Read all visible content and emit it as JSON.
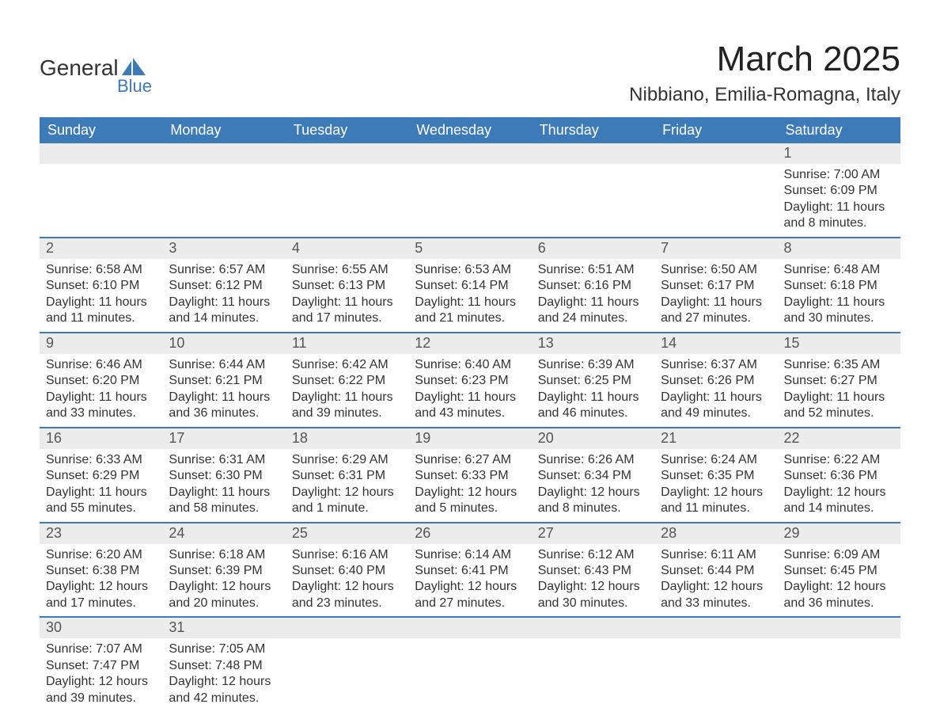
{
  "logo": {
    "text1": "General",
    "text2": "Blue",
    "brand_color": "#3d7ab8"
  },
  "title": "March 2025",
  "location": "Nibbiano, Emilia-Romagna, Italy",
  "colors": {
    "header_bg": "#3d7ab8",
    "header_text": "#ffffff",
    "daynum_bg": "#ececec",
    "text": "#333333",
    "border": "#3d7ab8",
    "background": "#ffffff"
  },
  "typography": {
    "title_fontsize": 44,
    "location_fontsize": 24,
    "dayheader_fontsize": 18,
    "daynum_fontsize": 18,
    "body_fontsize": 16,
    "font_family": "Arial"
  },
  "day_headers": [
    "Sunday",
    "Monday",
    "Tuesday",
    "Wednesday",
    "Thursday",
    "Friday",
    "Saturday"
  ],
  "weeks": [
    [
      {
        "n": "",
        "sunrise": "",
        "sunset": "",
        "dayl1": "",
        "dayl2": ""
      },
      {
        "n": "",
        "sunrise": "",
        "sunset": "",
        "dayl1": "",
        "dayl2": ""
      },
      {
        "n": "",
        "sunrise": "",
        "sunset": "",
        "dayl1": "",
        "dayl2": ""
      },
      {
        "n": "",
        "sunrise": "",
        "sunset": "",
        "dayl1": "",
        "dayl2": ""
      },
      {
        "n": "",
        "sunrise": "",
        "sunset": "",
        "dayl1": "",
        "dayl2": ""
      },
      {
        "n": "",
        "sunrise": "",
        "sunset": "",
        "dayl1": "",
        "dayl2": ""
      },
      {
        "n": "1",
        "sunrise": "Sunrise: 7:00 AM",
        "sunset": "Sunset: 6:09 PM",
        "dayl1": "Daylight: 11 hours",
        "dayl2": "and 8 minutes."
      }
    ],
    [
      {
        "n": "2",
        "sunrise": "Sunrise: 6:58 AM",
        "sunset": "Sunset: 6:10 PM",
        "dayl1": "Daylight: 11 hours",
        "dayl2": "and 11 minutes."
      },
      {
        "n": "3",
        "sunrise": "Sunrise: 6:57 AM",
        "sunset": "Sunset: 6:12 PM",
        "dayl1": "Daylight: 11 hours",
        "dayl2": "and 14 minutes."
      },
      {
        "n": "4",
        "sunrise": "Sunrise: 6:55 AM",
        "sunset": "Sunset: 6:13 PM",
        "dayl1": "Daylight: 11 hours",
        "dayl2": "and 17 minutes."
      },
      {
        "n": "5",
        "sunrise": "Sunrise: 6:53 AM",
        "sunset": "Sunset: 6:14 PM",
        "dayl1": "Daylight: 11 hours",
        "dayl2": "and 21 minutes."
      },
      {
        "n": "6",
        "sunrise": "Sunrise: 6:51 AM",
        "sunset": "Sunset: 6:16 PM",
        "dayl1": "Daylight: 11 hours",
        "dayl2": "and 24 minutes."
      },
      {
        "n": "7",
        "sunrise": "Sunrise: 6:50 AM",
        "sunset": "Sunset: 6:17 PM",
        "dayl1": "Daylight: 11 hours",
        "dayl2": "and 27 minutes."
      },
      {
        "n": "8",
        "sunrise": "Sunrise: 6:48 AM",
        "sunset": "Sunset: 6:18 PM",
        "dayl1": "Daylight: 11 hours",
        "dayl2": "and 30 minutes."
      }
    ],
    [
      {
        "n": "9",
        "sunrise": "Sunrise: 6:46 AM",
        "sunset": "Sunset: 6:20 PM",
        "dayl1": "Daylight: 11 hours",
        "dayl2": "and 33 minutes."
      },
      {
        "n": "10",
        "sunrise": "Sunrise: 6:44 AM",
        "sunset": "Sunset: 6:21 PM",
        "dayl1": "Daylight: 11 hours",
        "dayl2": "and 36 minutes."
      },
      {
        "n": "11",
        "sunrise": "Sunrise: 6:42 AM",
        "sunset": "Sunset: 6:22 PM",
        "dayl1": "Daylight: 11 hours",
        "dayl2": "and 39 minutes."
      },
      {
        "n": "12",
        "sunrise": "Sunrise: 6:40 AM",
        "sunset": "Sunset: 6:23 PM",
        "dayl1": "Daylight: 11 hours",
        "dayl2": "and 43 minutes."
      },
      {
        "n": "13",
        "sunrise": "Sunrise: 6:39 AM",
        "sunset": "Sunset: 6:25 PM",
        "dayl1": "Daylight: 11 hours",
        "dayl2": "and 46 minutes."
      },
      {
        "n": "14",
        "sunrise": "Sunrise: 6:37 AM",
        "sunset": "Sunset: 6:26 PM",
        "dayl1": "Daylight: 11 hours",
        "dayl2": "and 49 minutes."
      },
      {
        "n": "15",
        "sunrise": "Sunrise: 6:35 AM",
        "sunset": "Sunset: 6:27 PM",
        "dayl1": "Daylight: 11 hours",
        "dayl2": "and 52 minutes."
      }
    ],
    [
      {
        "n": "16",
        "sunrise": "Sunrise: 6:33 AM",
        "sunset": "Sunset: 6:29 PM",
        "dayl1": "Daylight: 11 hours",
        "dayl2": "and 55 minutes."
      },
      {
        "n": "17",
        "sunrise": "Sunrise: 6:31 AM",
        "sunset": "Sunset: 6:30 PM",
        "dayl1": "Daylight: 11 hours",
        "dayl2": "and 58 minutes."
      },
      {
        "n": "18",
        "sunrise": "Sunrise: 6:29 AM",
        "sunset": "Sunset: 6:31 PM",
        "dayl1": "Daylight: 12 hours",
        "dayl2": "and 1 minute."
      },
      {
        "n": "19",
        "sunrise": "Sunrise: 6:27 AM",
        "sunset": "Sunset: 6:33 PM",
        "dayl1": "Daylight: 12 hours",
        "dayl2": "and 5 minutes."
      },
      {
        "n": "20",
        "sunrise": "Sunrise: 6:26 AM",
        "sunset": "Sunset: 6:34 PM",
        "dayl1": "Daylight: 12 hours",
        "dayl2": "and 8 minutes."
      },
      {
        "n": "21",
        "sunrise": "Sunrise: 6:24 AM",
        "sunset": "Sunset: 6:35 PM",
        "dayl1": "Daylight: 12 hours",
        "dayl2": "and 11 minutes."
      },
      {
        "n": "22",
        "sunrise": "Sunrise: 6:22 AM",
        "sunset": "Sunset: 6:36 PM",
        "dayl1": "Daylight: 12 hours",
        "dayl2": "and 14 minutes."
      }
    ],
    [
      {
        "n": "23",
        "sunrise": "Sunrise: 6:20 AM",
        "sunset": "Sunset: 6:38 PM",
        "dayl1": "Daylight: 12 hours",
        "dayl2": "and 17 minutes."
      },
      {
        "n": "24",
        "sunrise": "Sunrise: 6:18 AM",
        "sunset": "Sunset: 6:39 PM",
        "dayl1": "Daylight: 12 hours",
        "dayl2": "and 20 minutes."
      },
      {
        "n": "25",
        "sunrise": "Sunrise: 6:16 AM",
        "sunset": "Sunset: 6:40 PM",
        "dayl1": "Daylight: 12 hours",
        "dayl2": "and 23 minutes."
      },
      {
        "n": "26",
        "sunrise": "Sunrise: 6:14 AM",
        "sunset": "Sunset: 6:41 PM",
        "dayl1": "Daylight: 12 hours",
        "dayl2": "and 27 minutes."
      },
      {
        "n": "27",
        "sunrise": "Sunrise: 6:12 AM",
        "sunset": "Sunset: 6:43 PM",
        "dayl1": "Daylight: 12 hours",
        "dayl2": "and 30 minutes."
      },
      {
        "n": "28",
        "sunrise": "Sunrise: 6:11 AM",
        "sunset": "Sunset: 6:44 PM",
        "dayl1": "Daylight: 12 hours",
        "dayl2": "and 33 minutes."
      },
      {
        "n": "29",
        "sunrise": "Sunrise: 6:09 AM",
        "sunset": "Sunset: 6:45 PM",
        "dayl1": "Daylight: 12 hours",
        "dayl2": "and 36 minutes."
      }
    ],
    [
      {
        "n": "30",
        "sunrise": "Sunrise: 7:07 AM",
        "sunset": "Sunset: 7:47 PM",
        "dayl1": "Daylight: 12 hours",
        "dayl2": "and 39 minutes."
      },
      {
        "n": "31",
        "sunrise": "Sunrise: 7:05 AM",
        "sunset": "Sunset: 7:48 PM",
        "dayl1": "Daylight: 12 hours",
        "dayl2": "and 42 minutes."
      },
      {
        "n": "",
        "sunrise": "",
        "sunset": "",
        "dayl1": "",
        "dayl2": ""
      },
      {
        "n": "",
        "sunrise": "",
        "sunset": "",
        "dayl1": "",
        "dayl2": ""
      },
      {
        "n": "",
        "sunrise": "",
        "sunset": "",
        "dayl1": "",
        "dayl2": ""
      },
      {
        "n": "",
        "sunrise": "",
        "sunset": "",
        "dayl1": "",
        "dayl2": ""
      },
      {
        "n": "",
        "sunrise": "",
        "sunset": "",
        "dayl1": "",
        "dayl2": ""
      }
    ]
  ]
}
